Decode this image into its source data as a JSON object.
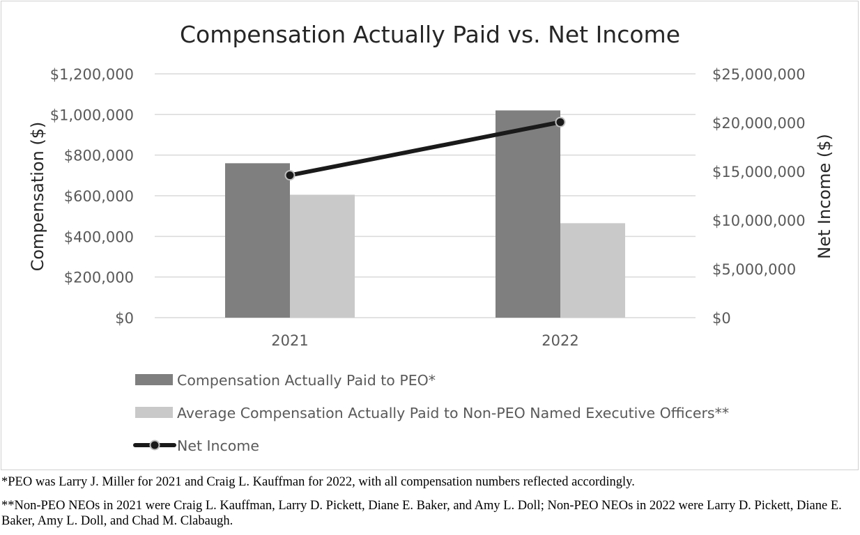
{
  "chart_data": {
    "type": "bar",
    "title": "Compensation Actually Paid vs. Net Income",
    "categories": [
      "2021",
      "2022"
    ],
    "ylabel": "Compensation ($)",
    "y2label": "Net Income ($)",
    "ylim": [
      0,
      1200000
    ],
    "y2lim": [
      0,
      25000000
    ],
    "yticks": [
      "$0",
      "$200,000",
      "$400,000",
      "$600,000",
      "$800,000",
      "$1,000,000",
      "$1,200,000"
    ],
    "y2ticks": [
      "$0",
      "$5,000,000",
      "$10,000,000",
      "$15,000,000",
      "$20,000,000",
      "$25,000,000"
    ],
    "grid": true,
    "legend_position": "bottom",
    "series": [
      {
        "name": "Compensation Actually Paid to PEO*",
        "type": "bar",
        "axis": "left",
        "color": "#7f7f7f",
        "values": [
          760000,
          1020000
        ]
      },
      {
        "name": "Average Compensation Actually Paid to Non-PEO Named Executive Officers**",
        "type": "bar",
        "axis": "left",
        "color": "#c9c9c9",
        "values": [
          605000,
          465000
        ]
      },
      {
        "name": "Net Income",
        "type": "line",
        "axis": "right",
        "color": "#1a1a1a",
        "values": [
          14600000,
          20050000
        ]
      }
    ]
  },
  "notes": {
    "note1": "*PEO was Larry J. Miller for 2021 and Craig L. Kauffman for 2022, with all compensation numbers reflected accordingly.",
    "note2": "**Non-PEO NEOs in 2021 were Craig L. Kauffman, Larry D. Pickett, Diane E. Baker, and Amy L. Doll; Non-PEO NEOs in 2022 were Larry D. Pickett, Diane E. Baker, Amy L. Doll, and Chad M. Clabaugh."
  }
}
